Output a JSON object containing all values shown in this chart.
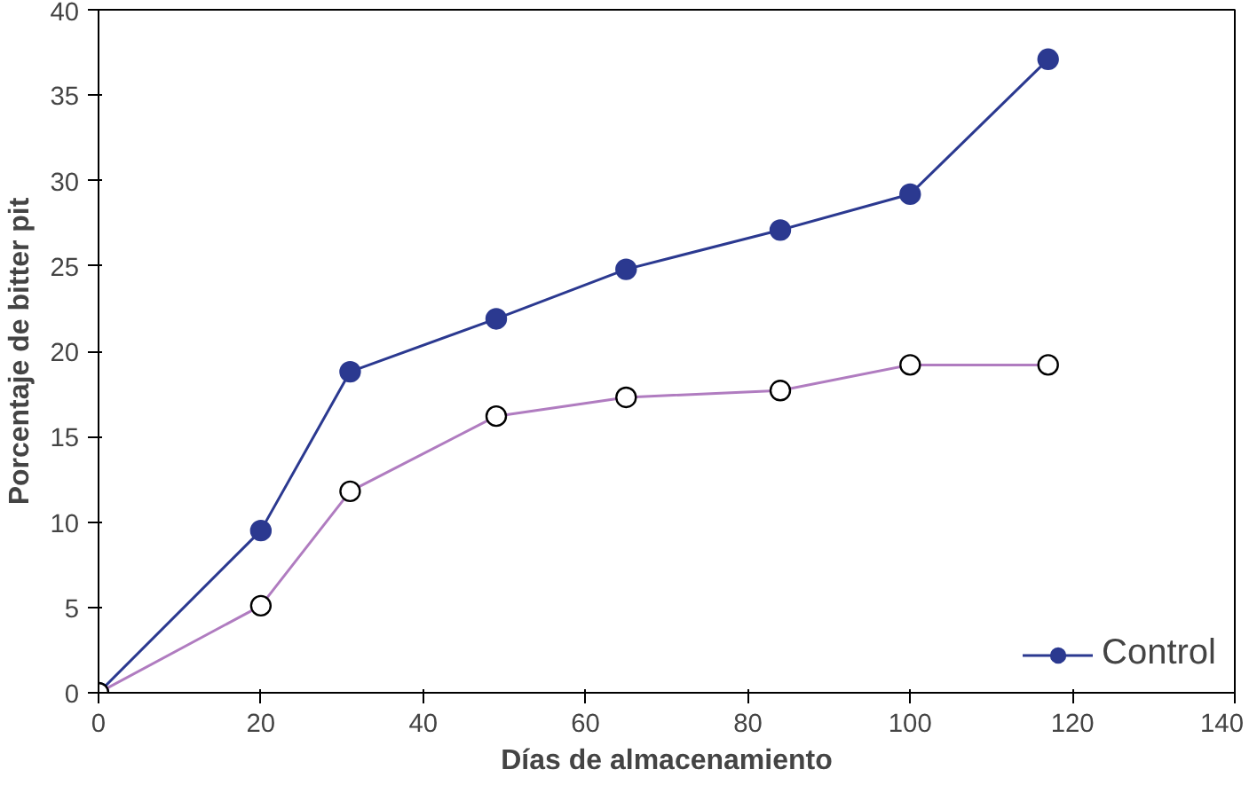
{
  "chart_data": {
    "type": "line",
    "xlabel": "Días de almacenamiento",
    "ylabel": "Porcentaje de bitter pit",
    "xlim": [
      0,
      140
    ],
    "ylim": [
      0,
      40
    ],
    "xticks": [
      0,
      20,
      40,
      60,
      80,
      100,
      120,
      140
    ],
    "yticks": [
      0,
      5,
      10,
      15,
      20,
      25,
      30,
      35,
      40
    ],
    "x": [
      0,
      20,
      31,
      49,
      65,
      84,
      100,
      117
    ],
    "series": [
      {
        "name": "Control",
        "color": "#2b3990",
        "values": [
          0,
          9.5,
          18.8,
          21.9,
          24.8,
          27.1,
          29.2,
          37.1
        ]
      },
      {
        "color": "#b07cc0",
        "values": [
          0,
          5.1,
          11.8,
          16.2,
          17.3,
          17.7,
          19.2,
          19.2
        ]
      }
    ],
    "marker": "circle",
    "line_style": "solid",
    "grid": false,
    "legend": "bottom right"
  }
}
